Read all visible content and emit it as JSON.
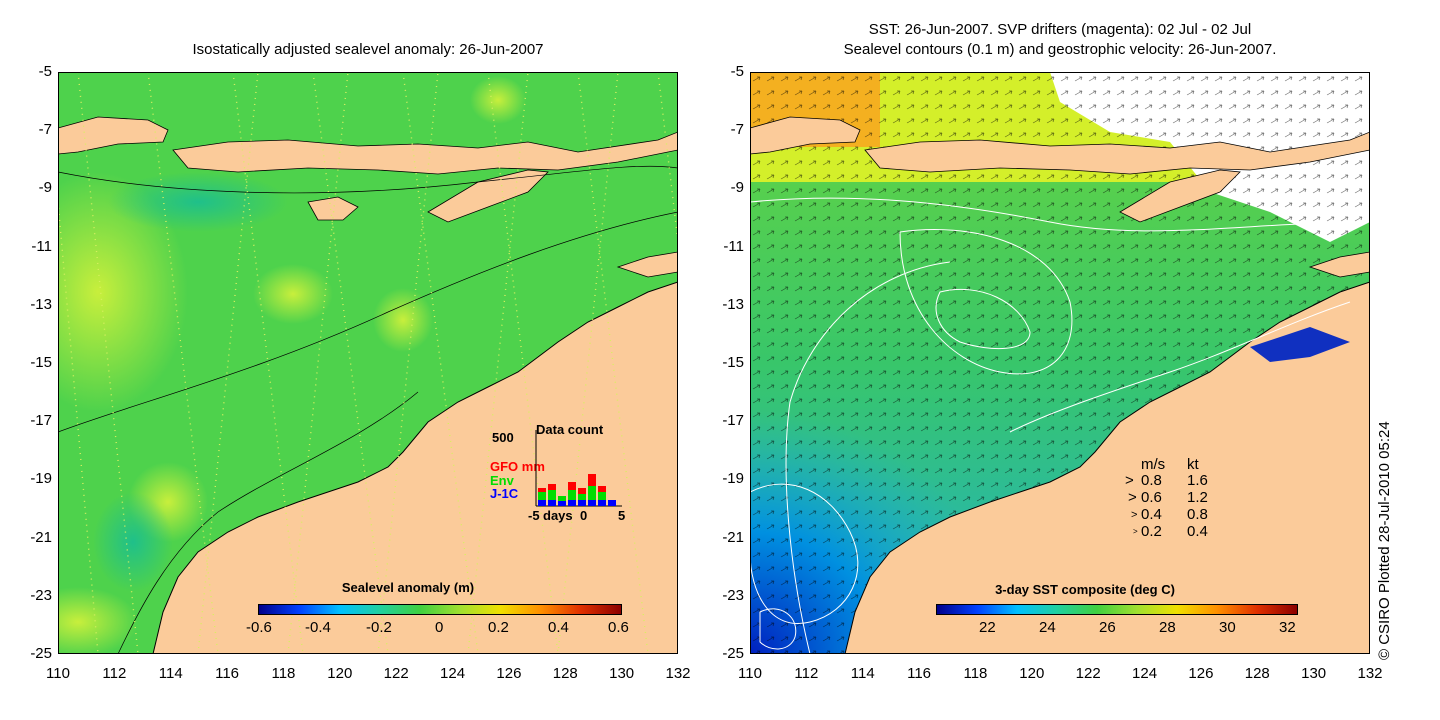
{
  "left_panel": {
    "title": "Isostatically adjusted sealevel anomaly: 26-Jun-2007",
    "colorbar": {
      "title": "Sealevel anomaly (m)",
      "ticks": [
        "-0.6",
        "-0.4",
        "-0.2",
        "0",
        "0.2",
        "0.4",
        "0.6"
      ]
    },
    "inset": {
      "title": "Data count",
      "ymax_label": "500",
      "legend": [
        {
          "label": "GFO mm",
          "color": "#ff0000"
        },
        {
          "label": "Env",
          "color": "#00dd00"
        },
        {
          "label": "J-1C",
          "color": "#0000ff"
        }
      ],
      "xlabel": "days",
      "xticks": [
        "-5",
        "0",
        "5"
      ]
    }
  },
  "right_panel": {
    "title_line1": "SST: 26-Jun-2007. SVP drifters (magenta): 02 Jul - 02 Jul",
    "title_line2": "Sealevel contours (0.1 m) and geostrophic velocity: 26-Jun-2007.",
    "colorbar": {
      "title": "3-day SST composite (deg C)",
      "ticks": [
        "22",
        "24",
        "26",
        "28",
        "30",
        "32"
      ]
    },
    "velocity_legend": {
      "header_ms": "m/s",
      "header_kt": "kt",
      "rows": [
        {
          "ms": "0.8",
          "kt": "1.6"
        },
        {
          "ms": "0.6",
          "kt": "1.2"
        },
        {
          "ms": "0.4",
          "kt": "0.8"
        },
        {
          "ms": "0.2",
          "kt": "0.4"
        }
      ]
    }
  },
  "axes": {
    "lat_ticks": [
      "-5",
      "-7",
      "-9",
      "-11",
      "-13",
      "-15",
      "-17",
      "-19",
      "-21",
      "-23",
      "-25"
    ],
    "lon_ticks": [
      "110",
      "112",
      "114",
      "116",
      "118",
      "120",
      "122",
      "124",
      "126",
      "128",
      "130",
      "132"
    ]
  },
  "credit": "© CSIRO Plotted 28-Jul-2010 05:24",
  "colors": {
    "land": "#fbcb9a",
    "ocean_green": "#44d24a",
    "cloud": "#ffffff"
  }
}
